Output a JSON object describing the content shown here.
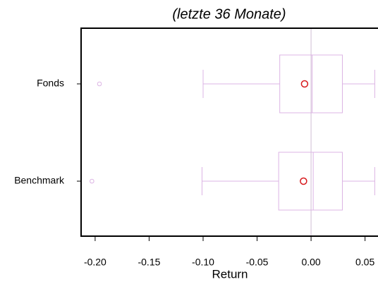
{
  "chart_data": {
    "type": "boxplot",
    "orientation": "horizontal",
    "title": "(letzte 36 Monate)",
    "x_label": "Return",
    "categories": [
      "Fonds",
      "Benchmark"
    ],
    "whisker_low": [
      -0.1,
      -0.101
    ],
    "q1": [
      -0.029,
      -0.03
    ],
    "median": [
      0.001,
      0.002
    ],
    "q3": [
      0.029,
      0.029
    ],
    "whisker_high": [
      0.059,
      0.059
    ],
    "mean": [
      -0.006,
      -0.007
    ],
    "outliers": [
      [
        -0.196
      ],
      [
        -0.203
      ]
    ],
    "box_color": "#dcb4e4",
    "mean_color": "#d7191c",
    "refline": 0,
    "refline_color": "#d8c8dc",
    "xlim": [
      -0.213,
      0.062
    ],
    "xticks": [
      {
        "value": -0.2,
        "label": "-0.20"
      },
      -0.15,
      {
        "value": -0.1,
        "label": "-0.10"
      },
      -0.05,
      {
        "value": 0,
        "label": "0.00"
      },
      0.05
    ]
  }
}
